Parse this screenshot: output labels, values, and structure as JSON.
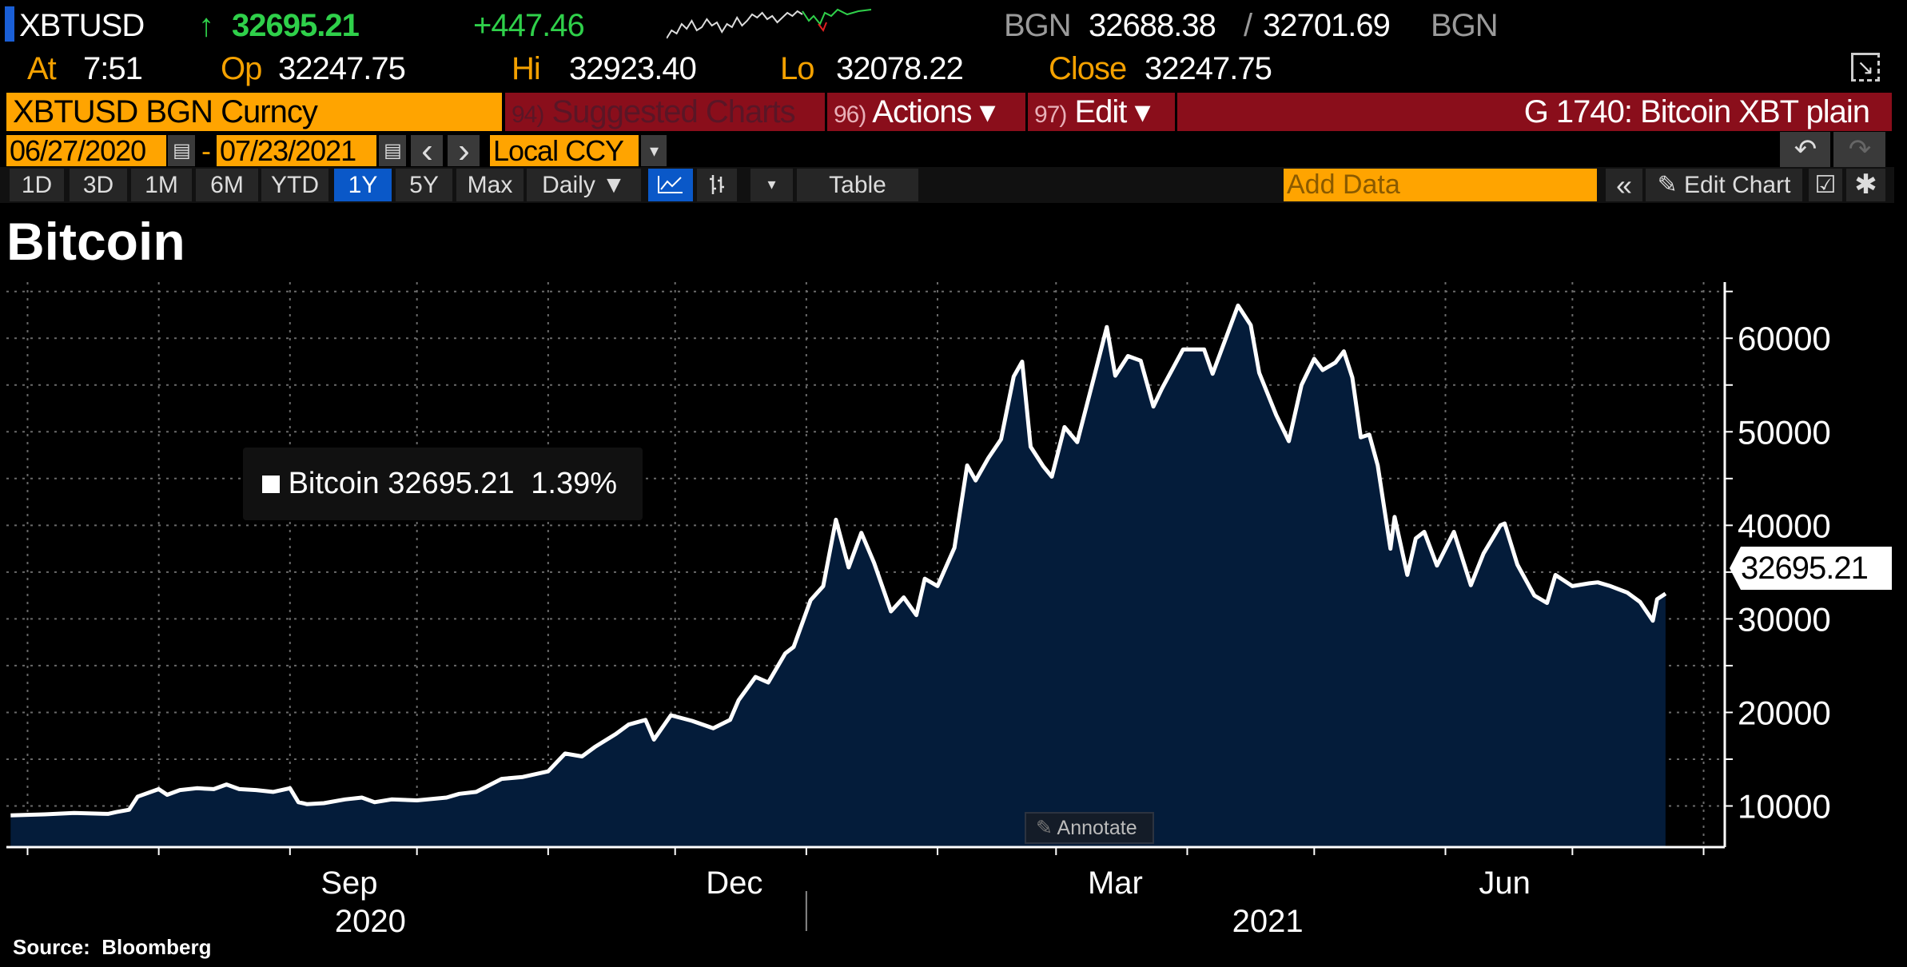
{
  "quote": {
    "ticker": "XBTUSD",
    "arrow": "↑",
    "last": "32695.21",
    "change": "+447.46",
    "bid_source": "BGN",
    "bid": "32688.38",
    "separator": "/",
    "ask": "32701.69",
    "ask_source": "BGN",
    "at_label": "At",
    "at_time": "7:51",
    "open_label": "Op",
    "open": "32247.75",
    "high_label": "Hi",
    "high": "32923.40",
    "low_label": "Lo",
    "low": "32078.22",
    "close_label": "Close",
    "close": "32247.75"
  },
  "menubar": {
    "security": "XBTUSD BGN Curncy",
    "suggested_num": "94)",
    "suggested": "Suggested Charts",
    "actions_num": "96)",
    "actions": "Actions ▾",
    "edit_num": "97)",
    "edit": "Edit ▾",
    "title": "G 1740: Bitcoin XBT plain"
  },
  "daterow": {
    "start": "06/27/2020",
    "dash": "-",
    "end": "07/23/2021",
    "prev": "‹",
    "next": "›",
    "currency": "Local CCY",
    "dropdown": "▾",
    "undo": "↶",
    "redo": "↷"
  },
  "toolbar": {
    "ranges": [
      "1D",
      "3D",
      "1M",
      "6M",
      "YTD",
      "1Y",
      "5Y",
      "Max"
    ],
    "active_range": "1Y",
    "frequency": "Daily ▼",
    "more": "▾",
    "table": "Table",
    "add_data_placeholder": "Add Data",
    "collapse": "«",
    "edit_chart": "Edit Chart",
    "edit_chart_icon": "✎"
  },
  "colors": {
    "accent_orange": "#ffa400",
    "menu_red": "#8a0e1b",
    "active_blue": "#0a58c8",
    "area_fill": "#041c3a",
    "line": "#ffffff",
    "up_green": "#2fd04a"
  },
  "chart_data": {
    "type": "area",
    "title": "Bitcoin",
    "source": "Source:  Bloomberg",
    "legend": {
      "name": "Bitcoin",
      "value": "32695.21",
      "change": "1.39%"
    },
    "last_value_tag": "32695.21",
    "annotate_label": "Annotate",
    "x_range": [
      "2020-06-26",
      "2021-08-06"
    ],
    "ylim": [
      5600,
      66000
    ],
    "y_ticks": [
      "10000",
      "20000",
      "30000",
      "40000",
      "50000",
      "60000"
    ],
    "grid": true,
    "x_labels": [
      {
        "label": "Sep",
        "date": "2020-09-15"
      },
      {
        "label": "Dec",
        "date": "2020-12-15"
      },
      {
        "label": "Mar",
        "date": "2021-03-15"
      },
      {
        "label": "Jun",
        "date": "2021-06-15"
      }
    ],
    "year_labels": [
      {
        "label": "2020",
        "date": "2020-09-20"
      },
      {
        "label": "2021",
        "date": "2021-04-20"
      }
    ],
    "series": [
      {
        "name": "Bitcoin",
        "points": [
          [
            "2020-06-27",
            9000
          ],
          [
            "2020-07-05",
            9100
          ],
          [
            "2020-07-12",
            9250
          ],
          [
            "2020-07-20",
            9150
          ],
          [
            "2020-07-22",
            9350
          ],
          [
            "2020-07-25",
            9600
          ],
          [
            "2020-07-27",
            11000
          ],
          [
            "2020-08-01",
            11800
          ],
          [
            "2020-08-03",
            11200
          ],
          [
            "2020-08-06",
            11700
          ],
          [
            "2020-08-10",
            11900
          ],
          [
            "2020-08-14",
            11800
          ],
          [
            "2020-08-17",
            12300
          ],
          [
            "2020-08-20",
            11800
          ],
          [
            "2020-08-24",
            11700
          ],
          [
            "2020-08-28",
            11500
          ],
          [
            "2020-09-01",
            11900
          ],
          [
            "2020-09-03",
            10400
          ],
          [
            "2020-09-05",
            10200
          ],
          [
            "2020-09-09",
            10300
          ],
          [
            "2020-09-14",
            10700
          ],
          [
            "2020-09-18",
            10900
          ],
          [
            "2020-09-21",
            10400
          ],
          [
            "2020-09-25",
            10700
          ],
          [
            "2020-10-01",
            10600
          ],
          [
            "2020-10-08",
            10900
          ],
          [
            "2020-10-11",
            11300
          ],
          [
            "2020-10-15",
            11500
          ],
          [
            "2020-10-21",
            12900
          ],
          [
            "2020-10-26",
            13100
          ],
          [
            "2020-11-01",
            13700
          ],
          [
            "2020-11-05",
            15600
          ],
          [
            "2020-11-09",
            15300
          ],
          [
            "2020-11-12",
            16300
          ],
          [
            "2020-11-17",
            17700
          ],
          [
            "2020-11-20",
            18700
          ],
          [
            "2020-11-24",
            19200
          ],
          [
            "2020-11-26",
            17100
          ],
          [
            "2020-11-30",
            19700
          ],
          [
            "2020-12-05",
            19100
          ],
          [
            "2020-12-10",
            18300
          ],
          [
            "2020-12-14",
            19200
          ],
          [
            "2020-12-16",
            21300
          ],
          [
            "2020-12-20",
            23800
          ],
          [
            "2020-12-23",
            23200
          ],
          [
            "2020-12-27",
            26300
          ],
          [
            "2020-12-29",
            27000
          ],
          [
            "2021-01-02",
            32000
          ],
          [
            "2021-01-05",
            33500
          ],
          [
            "2021-01-08",
            40600
          ],
          [
            "2021-01-11",
            35500
          ],
          [
            "2021-01-14",
            39200
          ],
          [
            "2021-01-17",
            36000
          ],
          [
            "2021-01-21",
            30800
          ],
          [
            "2021-01-24",
            32300
          ],
          [
            "2021-01-27",
            30400
          ],
          [
            "2021-01-29",
            34300
          ],
          [
            "2021-02-01",
            33500
          ],
          [
            "2021-02-05",
            37600
          ],
          [
            "2021-02-08",
            46400
          ],
          [
            "2021-02-10",
            44800
          ],
          [
            "2021-02-13",
            47200
          ],
          [
            "2021-02-16",
            49200
          ],
          [
            "2021-02-19",
            55900
          ],
          [
            "2021-02-21",
            57500
          ],
          [
            "2021-02-23",
            48400
          ],
          [
            "2021-02-26",
            46300
          ],
          [
            "2021-02-28",
            45200
          ],
          [
            "2021-03-03",
            50500
          ],
          [
            "2021-03-06",
            48900
          ],
          [
            "2021-03-10",
            55900
          ],
          [
            "2021-03-13",
            61200
          ],
          [
            "2021-03-15",
            56000
          ],
          [
            "2021-03-18",
            58100
          ],
          [
            "2021-03-21",
            57600
          ],
          [
            "2021-03-24",
            52700
          ],
          [
            "2021-03-26",
            54600
          ],
          [
            "2021-03-31",
            58800
          ],
          [
            "2021-04-05",
            58800
          ],
          [
            "2021-04-07",
            56200
          ],
          [
            "2021-04-13",
            63500
          ],
          [
            "2021-04-16",
            61400
          ],
          [
            "2021-04-18",
            56300
          ],
          [
            "2021-04-22",
            51800
          ],
          [
            "2021-04-25",
            49000
          ],
          [
            "2021-04-28",
            55000
          ],
          [
            "2021-05-01",
            57800
          ],
          [
            "2021-05-03",
            56600
          ],
          [
            "2021-05-06",
            57400
          ],
          [
            "2021-05-08",
            58600
          ],
          [
            "2021-05-10",
            55800
          ],
          [
            "2021-05-12",
            49400
          ],
          [
            "2021-05-14",
            49700
          ],
          [
            "2021-05-16",
            46400
          ],
          [
            "2021-05-19",
            37500
          ],
          [
            "2021-05-20",
            40900
          ],
          [
            "2021-05-23",
            34700
          ],
          [
            "2021-05-25",
            38600
          ],
          [
            "2021-05-27",
            39300
          ],
          [
            "2021-05-30",
            35700
          ],
          [
            "2021-06-03",
            39300
          ],
          [
            "2021-06-07",
            33600
          ],
          [
            "2021-06-10",
            37000
          ],
          [
            "2021-06-14",
            40000
          ],
          [
            "2021-06-15",
            40200
          ],
          [
            "2021-06-18",
            35800
          ],
          [
            "2021-06-22",
            32500
          ],
          [
            "2021-06-25",
            31700
          ],
          [
            "2021-06-27",
            34700
          ],
          [
            "2021-07-01",
            33500
          ],
          [
            "2021-07-05",
            33800
          ],
          [
            "2021-07-07",
            33900
          ],
          [
            "2021-07-10",
            33500
          ],
          [
            "2021-07-14",
            32800
          ],
          [
            "2021-07-17",
            31800
          ],
          [
            "2021-07-20",
            29800
          ],
          [
            "2021-07-21",
            32100
          ],
          [
            "2021-07-23",
            32695.21
          ]
        ]
      }
    ]
  }
}
